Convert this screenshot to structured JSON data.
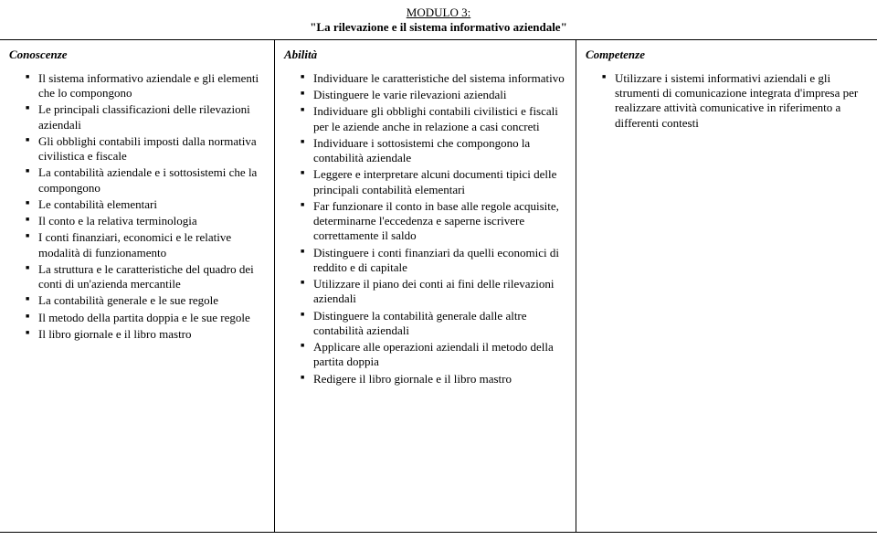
{
  "header": {
    "module_number": "MODULO 3:",
    "module_title": "\"La rilevazione e il sistema informativo aziendale\""
  },
  "columns": {
    "conoscenze": {
      "title": "Conoscenze",
      "items": [
        "Il sistema informativo aziendale e gli elementi che lo compongono",
        "Le principali classificazioni delle rilevazioni aziendali",
        "Gli obblighi contabili imposti dalla normativa civilistica e fiscale",
        "La contabilità aziendale e i sottosistemi che la compongono",
        "Le contabilità elementari",
        "Il conto e la relativa terminologia",
        "I conti finanziari, economici e le relative modalità di funzionamento",
        "La struttura e le caratteristiche del quadro dei conti di un'azienda mercantile",
        "La contabilità generale e le sue regole",
        "Il metodo della partita doppia e le sue regole",
        "Il libro giornale e il libro mastro"
      ]
    },
    "abilita": {
      "title": "Abilità",
      "items": [
        "Individuare le caratteristiche del sistema informativo",
        "Distinguere le varie rilevazioni aziendali",
        "Individuare gli obblighi contabili civilistici e fiscali per le aziende anche in relazione a casi concreti",
        "Individuare i sottosistemi che compongono la contabilità aziendale",
        "Leggere e interpretare alcuni documenti tipici delle principali contabilità elementari",
        "Far funzionare il conto in base alle regole acquisite, determinarne l'eccedenza e saperne iscrivere correttamente il saldo",
        "Distinguere i conti finanziari da quelli economici di reddito e di capitale",
        "Utilizzare il piano dei conti ai fini delle rilevazioni aziendali",
        "Distinguere la contabilità generale dalle altre contabilità aziendali",
        "Applicare alle operazioni aziendali il metodo della partita doppia",
        "Redigere il libro giornale e il libro mastro"
      ]
    },
    "competenze": {
      "title": "Competenze",
      "items": [
        "Utilizzare i sistemi informativi aziendali e gli strumenti di comunicazione integrata d'impresa per realizzare attività comunicative in riferimento a differenti contesti"
      ]
    }
  }
}
